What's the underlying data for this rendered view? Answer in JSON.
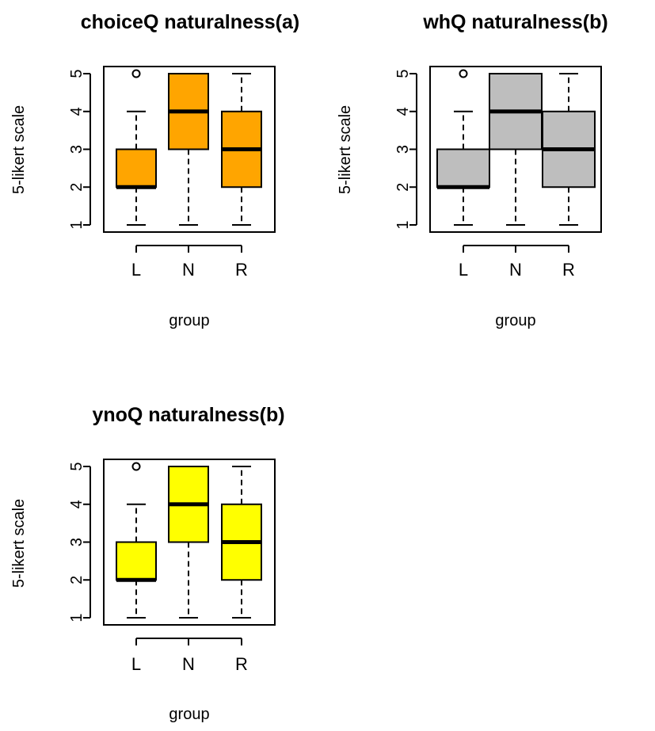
{
  "chart_data": [
    {
      "type": "box",
      "title": "choiceQ naturalness(a)",
      "xlabel": "group",
      "ylabel": "5-likert scale",
      "ylim": [
        1,
        5
      ],
      "yticks": [
        "1",
        "2",
        "3",
        "4",
        "5"
      ],
      "fill": "#FFA500",
      "categories": [
        "L",
        "N",
        "R"
      ],
      "boxes": [
        {
          "min": 1,
          "q1": 2,
          "median": 2,
          "q3": 3,
          "max": 4,
          "outliers": [
            5
          ]
        },
        {
          "min": 1,
          "q1": 3,
          "median": 4,
          "q3": 5,
          "max": 5,
          "outliers": []
        },
        {
          "min": 1,
          "q1": 2,
          "median": 3,
          "q3": 4,
          "max": 5,
          "outliers": []
        }
      ]
    },
    {
      "type": "box",
      "title": "whQ naturalness(b)",
      "xlabel": "group",
      "ylabel": "5-likert scale",
      "ylim": [
        1,
        5
      ],
      "yticks": [
        "1",
        "2",
        "3",
        "4",
        "5"
      ],
      "fill": "#BEBEBE",
      "categories": [
        "L",
        "N",
        "R"
      ],
      "boxes": [
        {
          "min": 1,
          "q1": 2,
          "median": 2,
          "q3": 3,
          "max": 4,
          "outliers": [
            5
          ]
        },
        {
          "min": 1,
          "q1": 3,
          "median": 4,
          "q3": 5,
          "max": 5,
          "outliers": []
        },
        {
          "min": 1,
          "q1": 2,
          "median": 3,
          "q3": 4,
          "max": 5,
          "outliers": []
        }
      ]
    },
    {
      "type": "box",
      "title": "ynoQ naturalness(b)",
      "xlabel": "group",
      "ylabel": "5-likert scale",
      "ylim": [
        1,
        5
      ],
      "yticks": [
        "1",
        "2",
        "3",
        "4",
        "5"
      ],
      "fill": "#FFFF00",
      "categories": [
        "L",
        "N",
        "R"
      ],
      "boxes": [
        {
          "min": 1,
          "q1": 2,
          "median": 2,
          "q3": 3,
          "max": 4,
          "outliers": [
            5
          ]
        },
        {
          "min": 1,
          "q1": 3,
          "median": 4,
          "q3": 5,
          "max": 5,
          "outliers": []
        },
        {
          "min": 1,
          "q1": 2,
          "median": 3,
          "q3": 4,
          "max": 5,
          "outliers": []
        }
      ]
    }
  ]
}
